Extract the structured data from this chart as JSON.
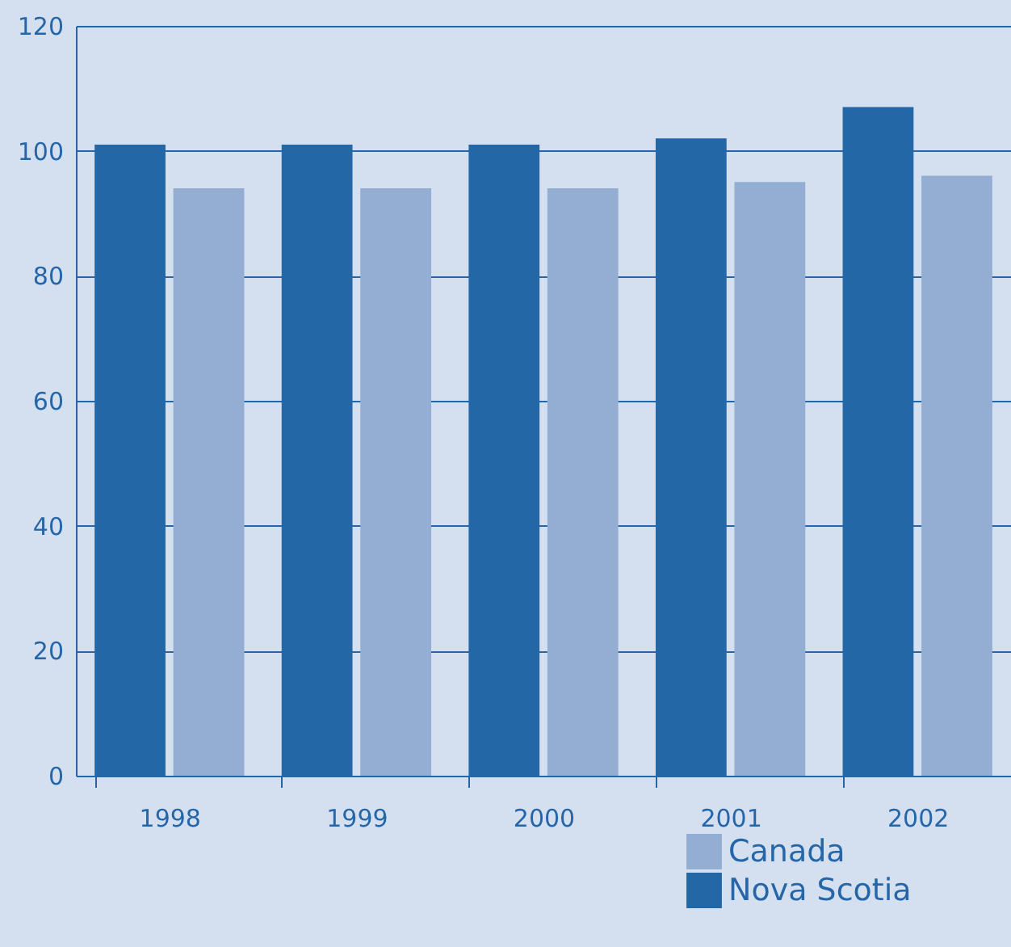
{
  "chart_data": {
    "type": "bar",
    "categories": [
      "1998",
      "1999",
      "2000",
      "2001",
      "2002"
    ],
    "series": [
      {
        "name": "Nova Scotia",
        "color": "#2467a7",
        "values": [
          101,
          101,
          101,
          102,
          107
        ]
      },
      {
        "name": "Canada",
        "color": "#93add3",
        "values": [
          94,
          94,
          94,
          95,
          96
        ]
      }
    ],
    "ylim": [
      0,
      120
    ],
    "yticks": [
      0,
      20,
      40,
      60,
      80,
      100,
      120
    ],
    "grid": "y",
    "legend": "bottom right"
  }
}
